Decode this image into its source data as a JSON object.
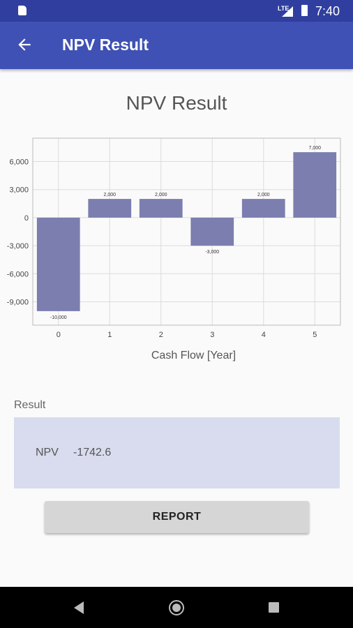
{
  "status_bar": {
    "time": "7:40",
    "network": "LTE",
    "icons": [
      "sim-card-icon",
      "signal-icon",
      "battery-icon"
    ]
  },
  "app_bar": {
    "title": "NPV Result",
    "back_icon": "arrow-back-icon"
  },
  "page_title": "NPV Result",
  "chart_data": {
    "type": "bar",
    "categories": [
      "0",
      "1",
      "2",
      "3",
      "4",
      "5"
    ],
    "values": [
      -10000,
      2000,
      2000,
      -3000,
      2000,
      7000
    ],
    "value_labels": [
      "-10,000",
      "2,000",
      "2,000",
      "-3,000",
      "2,000",
      "7,000"
    ],
    "title": "",
    "xlabel": "Cash Flow [Year]",
    "ylabel": "",
    "ylim": [
      -11500,
      8500
    ],
    "yticks": [
      -9000,
      -6000,
      -3000,
      0,
      3000,
      6000
    ],
    "ytick_labels": [
      "-9,000",
      "-6,000",
      "-3,000",
      "0",
      "3,000",
      "6,000"
    ],
    "grid": true,
    "legend": "none",
    "bar_color": "#7b7eae"
  },
  "result": {
    "label": "Result",
    "npv_label": "NPV",
    "npv_value": "-1742.6"
  },
  "report_button": {
    "label": "REPORT"
  },
  "nav_bar": {
    "icons": [
      "nav-back-icon",
      "nav-home-icon",
      "nav-recent-icon"
    ]
  }
}
